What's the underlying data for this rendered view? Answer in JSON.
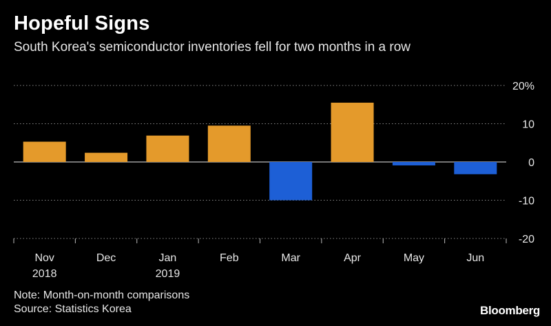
{
  "header": {
    "title": "Hopeful Signs",
    "subtitle": "South Korea's semiconductor inventories fell for two months in a row"
  },
  "footer": {
    "note": "Note: Month-on-month comparisons",
    "source": "Source: Statistics Korea",
    "brand": "Bloomberg"
  },
  "colors": {
    "positive": "#e49a2b",
    "negative": "#1d5fd6",
    "grid": "#8a8a8a",
    "text": "#e8e8e8"
  },
  "chart_data": {
    "type": "bar",
    "categories": [
      [
        "Nov",
        "2018"
      ],
      [
        "Dec",
        ""
      ],
      [
        "Jan",
        "2019"
      ],
      [
        "Feb",
        ""
      ],
      [
        "Mar",
        ""
      ],
      [
        "Apr",
        ""
      ],
      [
        "May",
        ""
      ],
      [
        "Jun",
        ""
      ]
    ],
    "values": [
      5.3,
      2.4,
      6.9,
      9.5,
      -10.0,
      15.5,
      -0.9,
      -3.2
    ],
    "ylim": [
      -20,
      20
    ],
    "yticks": [
      20,
      10,
      0,
      -10,
      -20
    ],
    "ytick_labels": [
      "20%",
      "10",
      "0",
      "-10",
      "-20"
    ],
    "grid": true,
    "yaxis_position": "right"
  }
}
